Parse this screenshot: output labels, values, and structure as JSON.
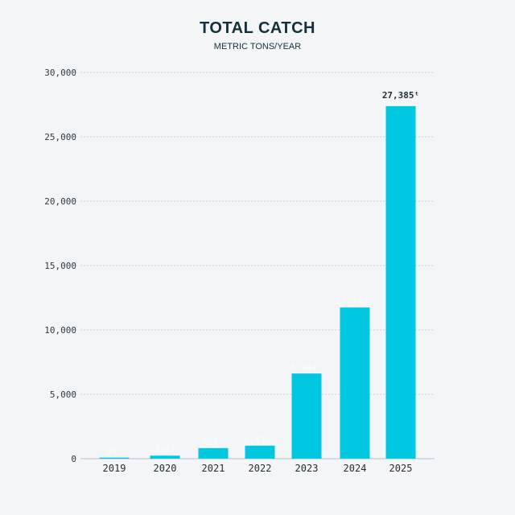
{
  "chart_data": {
    "type": "bar",
    "title": "TOTAL CATCH",
    "subtitle": "METRIC TONS/YEAR",
    "categories": [
      "2019",
      "2020",
      "2021",
      "2022",
      "2023",
      "2024",
      "2025"
    ],
    "values": [
      83,
      236,
      820,
      1012,
      6614,
      11740,
      27385
    ],
    "data_labels": [
      "83ᵗ",
      "236ᵗ",
      "820ᵗ",
      "1,012ᵗ",
      "6,614ᵗ",
      "11,740ᵗ",
      "27,385ᵗ"
    ],
    "ylim": [
      0,
      30000
    ],
    "yticks": [
      0,
      5000,
      10000,
      15000,
      20000,
      25000,
      30000
    ],
    "ytick_labels": [
      "0",
      "5,000",
      "10,000",
      "15,000",
      "20,000",
      "25,000",
      "30,000"
    ],
    "grid": true,
    "colors": {
      "bar": "#00c8e0",
      "label_last": "#1e2c35",
      "label_faint": "#f7f9fa"
    }
  }
}
